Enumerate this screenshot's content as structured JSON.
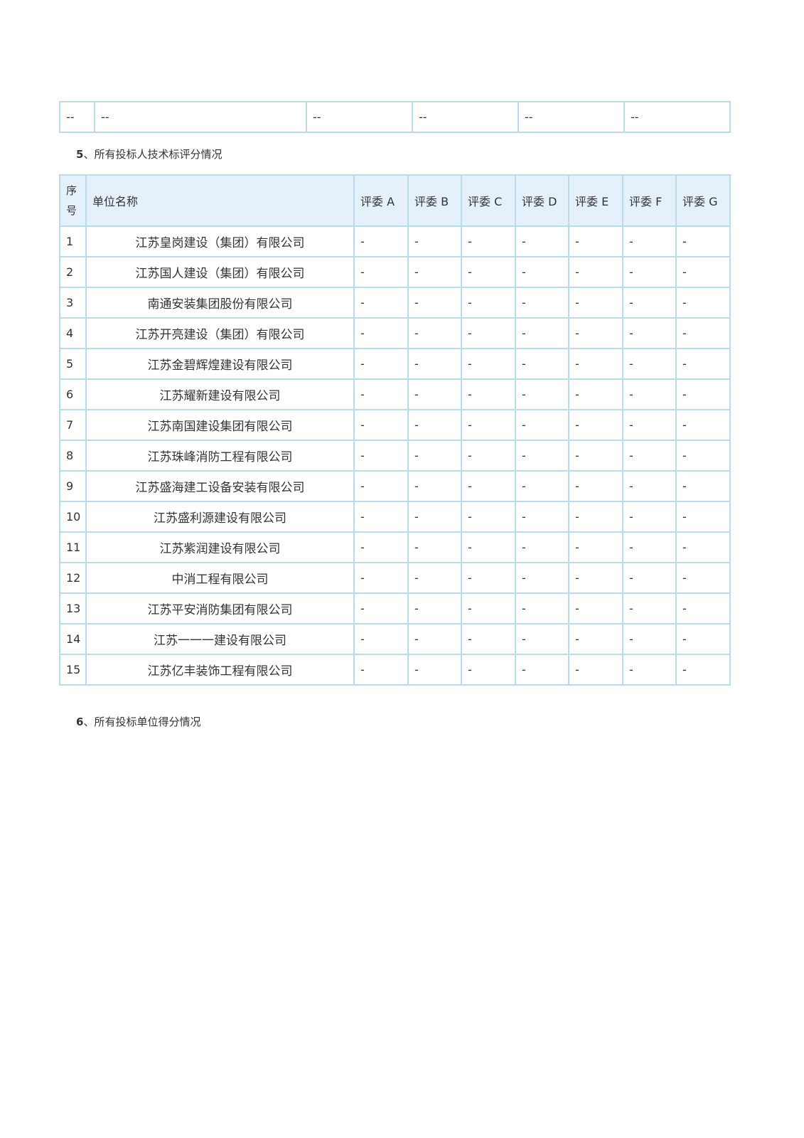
{
  "previous_table": {
    "cells": [
      "--",
      "--",
      "--",
      "--",
      "--",
      "--"
    ]
  },
  "section5": {
    "number": "5",
    "title": "、所有投标人技术标评分情况"
  },
  "score_table": {
    "headers": [
      "序号",
      "单位名称",
      "评委 A",
      "评委 B",
      "评委 C",
      "评委 D",
      "评委 E",
      "评委 F",
      "评委 G"
    ],
    "rows": [
      {
        "no": "1",
        "name": "江苏皇岗建设（集团）有限公司",
        "scores": [
          "-",
          "-",
          "-",
          "-",
          "-",
          "-",
          "-"
        ]
      },
      {
        "no": "2",
        "name": "江苏国人建设（集团）有限公司",
        "scores": [
          "-",
          "-",
          "-",
          "-",
          "-",
          "-",
          "-"
        ]
      },
      {
        "no": "3",
        "name": "南通安装集团股份有限公司",
        "scores": [
          "-",
          "-",
          "-",
          "-",
          "-",
          "-",
          "-"
        ]
      },
      {
        "no": "4",
        "name": "江苏开亮建设（集团）有限公司",
        "scores": [
          "-",
          "-",
          "-",
          "-",
          "-",
          "-",
          "-"
        ]
      },
      {
        "no": "5",
        "name": "江苏金碧辉煌建设有限公司",
        "scores": [
          "-",
          "-",
          "-",
          "-",
          "-",
          "-",
          "-"
        ]
      },
      {
        "no": "6",
        "name": "江苏耀新建设有限公司",
        "scores": [
          "-",
          "-",
          "-",
          "-",
          "-",
          "-",
          "-"
        ]
      },
      {
        "no": "7",
        "name": "江苏南国建设集团有限公司",
        "scores": [
          "-",
          "-",
          "-",
          "-",
          "-",
          "-",
          "-"
        ]
      },
      {
        "no": "8",
        "name": "江苏珠峰消防工程有限公司",
        "scores": [
          "-",
          "-",
          "-",
          "-",
          "-",
          "-",
          "-"
        ]
      },
      {
        "no": "9",
        "name": "江苏盛海建工设备安装有限公司",
        "scores": [
          "-",
          "-",
          "-",
          "-",
          "-",
          "-",
          "-"
        ]
      },
      {
        "no": "10",
        "name": "江苏盛利源建设有限公司",
        "scores": [
          "-",
          "-",
          "-",
          "-",
          "-",
          "-",
          "-"
        ]
      },
      {
        "no": "11",
        "name": "江苏紫润建设有限公司",
        "scores": [
          "-",
          "-",
          "-",
          "-",
          "-",
          "-",
          "-"
        ]
      },
      {
        "no": "12",
        "name": "中消工程有限公司",
        "scores": [
          "-",
          "-",
          "-",
          "-",
          "-",
          "-",
          "-"
        ]
      },
      {
        "no": "13",
        "name": "江苏平安消防集团有限公司",
        "scores": [
          "-",
          "-",
          "-",
          "-",
          "-",
          "-",
          "-"
        ]
      },
      {
        "no": "14",
        "name": "江苏一一一建设有限公司",
        "scores": [
          "-",
          "-",
          "-",
          "-",
          "-",
          "-",
          "-"
        ]
      },
      {
        "no": "15",
        "name": "江苏亿丰装饰工程有限公司",
        "scores": [
          "-",
          "-",
          "-",
          "-",
          "-",
          "-",
          "-"
        ]
      }
    ]
  },
  "section6": {
    "number": "6",
    "title": "、所有投标单位得分情况"
  },
  "colors": {
    "border": "#b9dbea",
    "header_bg": "#e4f1fa"
  }
}
